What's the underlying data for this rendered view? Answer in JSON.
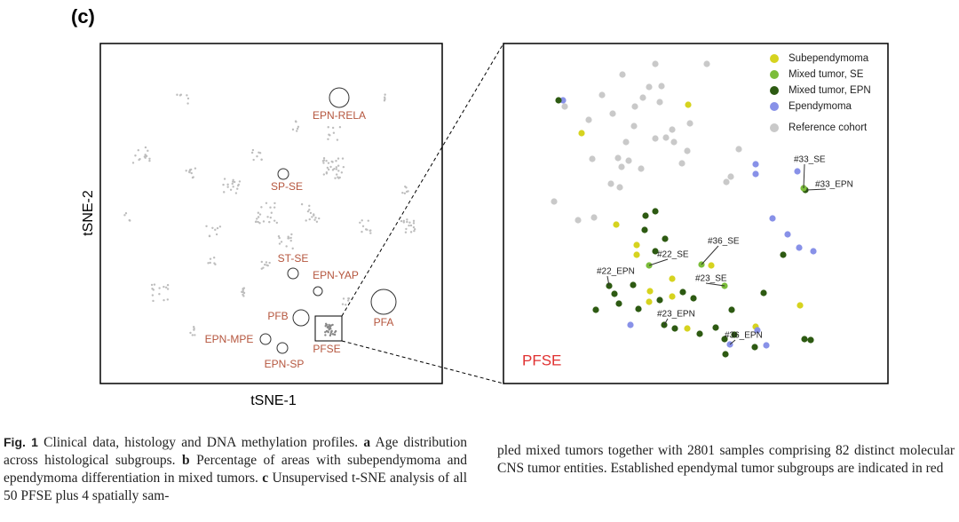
{
  "panel_label": "(c)",
  "overview_plot": {
    "x_label": "tSNE-1",
    "y_label": "tSNE-2",
    "group_labels": [
      "EPN-RELA",
      "SP-SE",
      "ST-SE",
      "EPN-YAP",
      "PFA",
      "PFB",
      "PFSE",
      "EPN-MPE",
      "EPN-SP"
    ]
  },
  "zoom_plot": {
    "legend": [
      {
        "name": "Subependymoma",
        "color": "#d6d31f"
      },
      {
        "name": "Mixed tumor, SE",
        "color": "#7bbd3a"
      },
      {
        "name": "Mixed tumor, EPN",
        "color": "#2d5a12"
      },
      {
        "name": "Ependymoma",
        "color": "#8891e8"
      },
      {
        "name": "Reference cohort",
        "color": "#c9c9c9"
      }
    ],
    "sample_labels": [
      "#33_SE",
      "#33_EPN",
      "#22_SE",
      "#36_SE",
      "#22_EPN",
      "#23_SE",
      "#23_EPN",
      "#36_EPN"
    ],
    "region_label": "PFSE"
  },
  "caption": {
    "label": "Fig. 1",
    "left": [
      {
        "text": "Clinical data, histology and DNA methylation profiles.",
        "bold": false
      },
      {
        "text": "a",
        "bold": true
      },
      {
        "text": "Age distribution across histological subgroups.",
        "bold": false
      },
      {
        "text": "b",
        "bold": true
      },
      {
        "text": "Percentage of areas with subependymoma and ependymoma differentiation in mixed tumors.",
        "bold": false
      },
      {
        "text": "c",
        "bold": true
      },
      {
        "text": "Unsupervised t-SNE analysis of all 50 PFSE plus 4 spatially sam-",
        "bold": false
      }
    ],
    "right": "pled mixed tumors together with 2801 samples comprising 82 distinct molecular CNS tumor entities. Established ependymal tumor subgroups are indicated in red"
  }
}
